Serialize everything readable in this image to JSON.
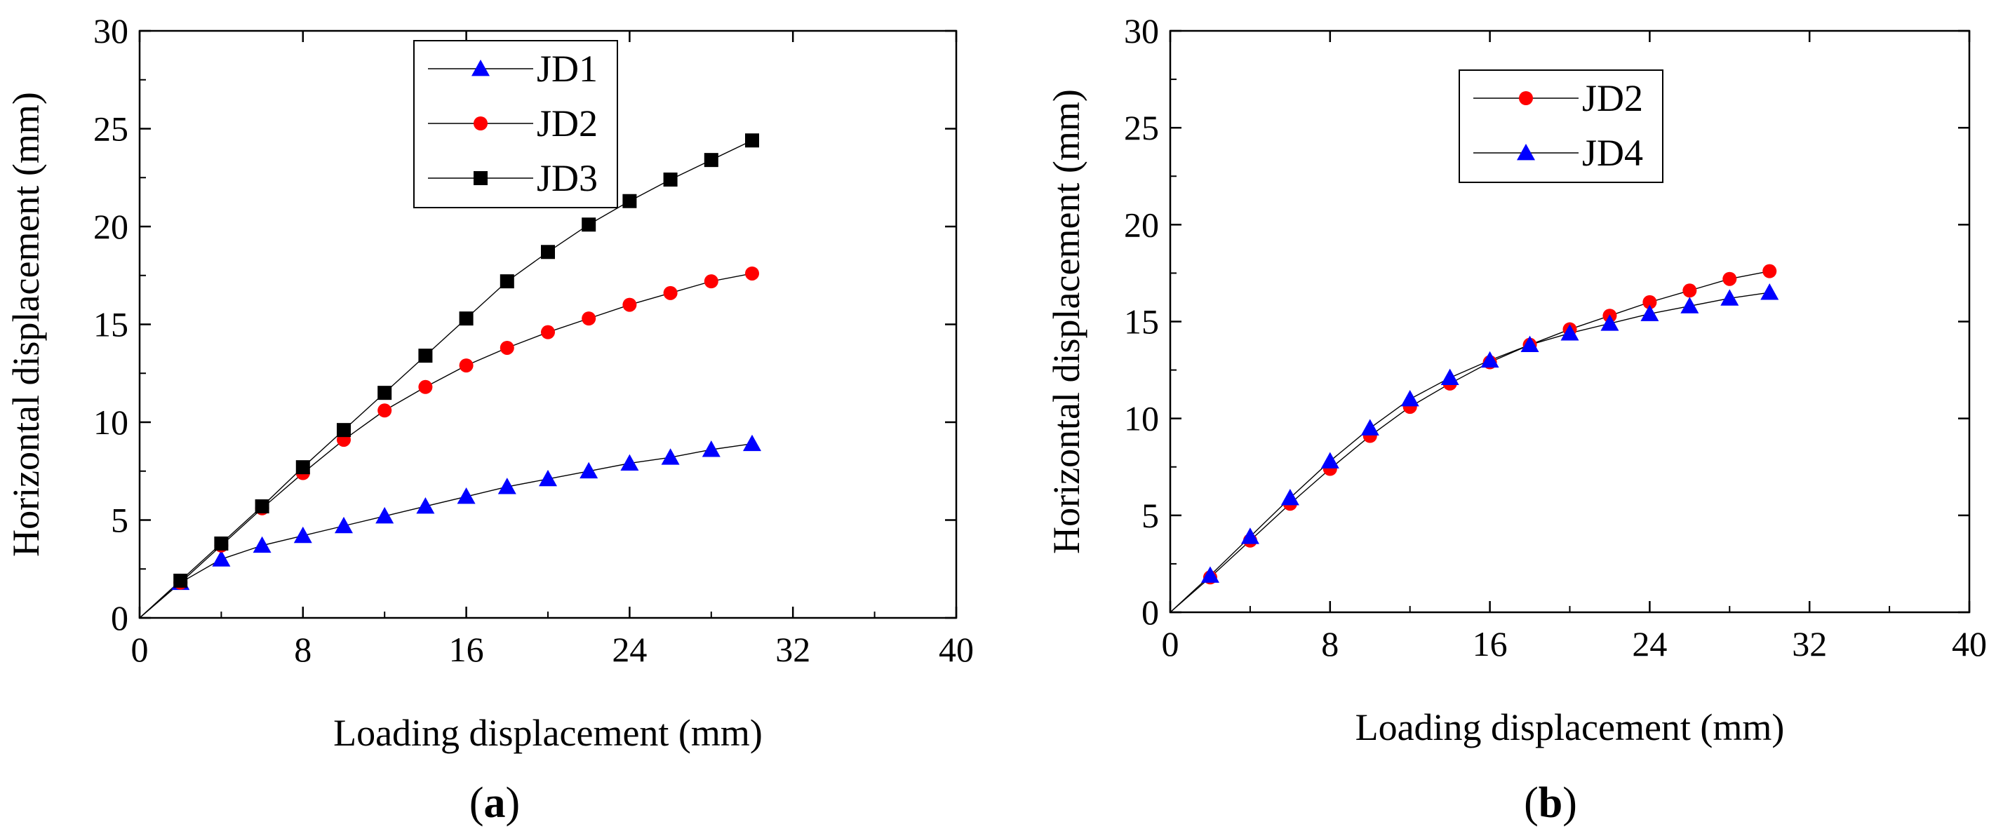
{
  "figure": {
    "captions": [
      {
        "open": "(",
        "letter": "a",
        "close": ")"
      },
      {
        "open": "(",
        "letter": "b",
        "close": ")"
      }
    ]
  },
  "chart_data": [
    {
      "type": "line",
      "panel": "a",
      "xlabel": "Loading displacement (mm)",
      "ylabel": "Horizontal displacement (mm)",
      "xlim": [
        0,
        40
      ],
      "ylim": [
        0,
        30
      ],
      "xticks": [
        0,
        8,
        16,
        24,
        32,
        40
      ],
      "xtick_labels": [
        "0",
        "8",
        "16",
        "24",
        "32",
        "40"
      ],
      "yticks": [
        0,
        5,
        10,
        15,
        20,
        25,
        30
      ],
      "ytick_labels": [
        "0",
        "5",
        "10",
        "15",
        "20",
        "25",
        "30"
      ],
      "grid": false,
      "legend_position": "top-center",
      "x": [
        0,
        2,
        4,
        6,
        8,
        10,
        12,
        14,
        16,
        18,
        20,
        22,
        24,
        26,
        28,
        30
      ],
      "series": [
        {
          "name": "JD1",
          "marker": "triangle",
          "color": "#0000ff",
          "values": [
            0,
            1.8,
            3.0,
            3.7,
            4.2,
            4.7,
            5.2,
            5.7,
            6.2,
            6.7,
            7.1,
            7.5,
            7.9,
            8.2,
            8.6,
            8.9
          ]
        },
        {
          "name": "JD2",
          "marker": "circle",
          "color": "#ff0000",
          "values": [
            0,
            1.8,
            3.7,
            5.6,
            7.4,
            9.1,
            10.6,
            11.8,
            12.9,
            13.8,
            14.6,
            15.3,
            16.0,
            16.6,
            17.2,
            17.6
          ]
        },
        {
          "name": "JD3",
          "marker": "square",
          "color": "#000000",
          "values": [
            0,
            1.9,
            3.8,
            5.7,
            7.7,
            9.6,
            11.5,
            13.4,
            15.3,
            17.2,
            18.7,
            20.1,
            21.3,
            22.4,
            23.4,
            24.4
          ]
        }
      ]
    },
    {
      "type": "line",
      "panel": "b",
      "xlabel": "Loading displacement (mm)",
      "ylabel": "Horizontal displacement (mm)",
      "xlim": [
        0,
        40
      ],
      "ylim": [
        0,
        30
      ],
      "xticks": [
        0,
        8,
        16,
        24,
        32,
        40
      ],
      "xtick_labels": [
        "0",
        "8",
        "16",
        "24",
        "32",
        "40"
      ],
      "yticks": [
        0,
        5,
        10,
        15,
        20,
        25,
        30
      ],
      "ytick_labels": [
        "0",
        "5",
        "10",
        "15",
        "20",
        "25",
        "30"
      ],
      "grid": false,
      "legend_position": "top-center",
      "x": [
        0,
        2,
        4,
        6,
        8,
        10,
        12,
        14,
        16,
        18,
        20,
        22,
        24,
        26,
        28,
        30
      ],
      "series": [
        {
          "name": "JD2",
          "marker": "circle",
          "color": "#ff0000",
          "values": [
            0,
            1.8,
            3.7,
            5.6,
            7.4,
            9.1,
            10.6,
            11.8,
            12.9,
            13.8,
            14.6,
            15.3,
            16.0,
            16.6,
            17.2,
            17.6
          ]
        },
        {
          "name": "JD4",
          "marker": "triangle",
          "color": "#0000ff",
          "values": [
            0,
            1.9,
            3.9,
            5.9,
            7.8,
            9.5,
            11.0,
            12.1,
            13.0,
            13.8,
            14.4,
            14.9,
            15.4,
            15.8,
            16.2,
            16.5
          ]
        }
      ]
    }
  ]
}
